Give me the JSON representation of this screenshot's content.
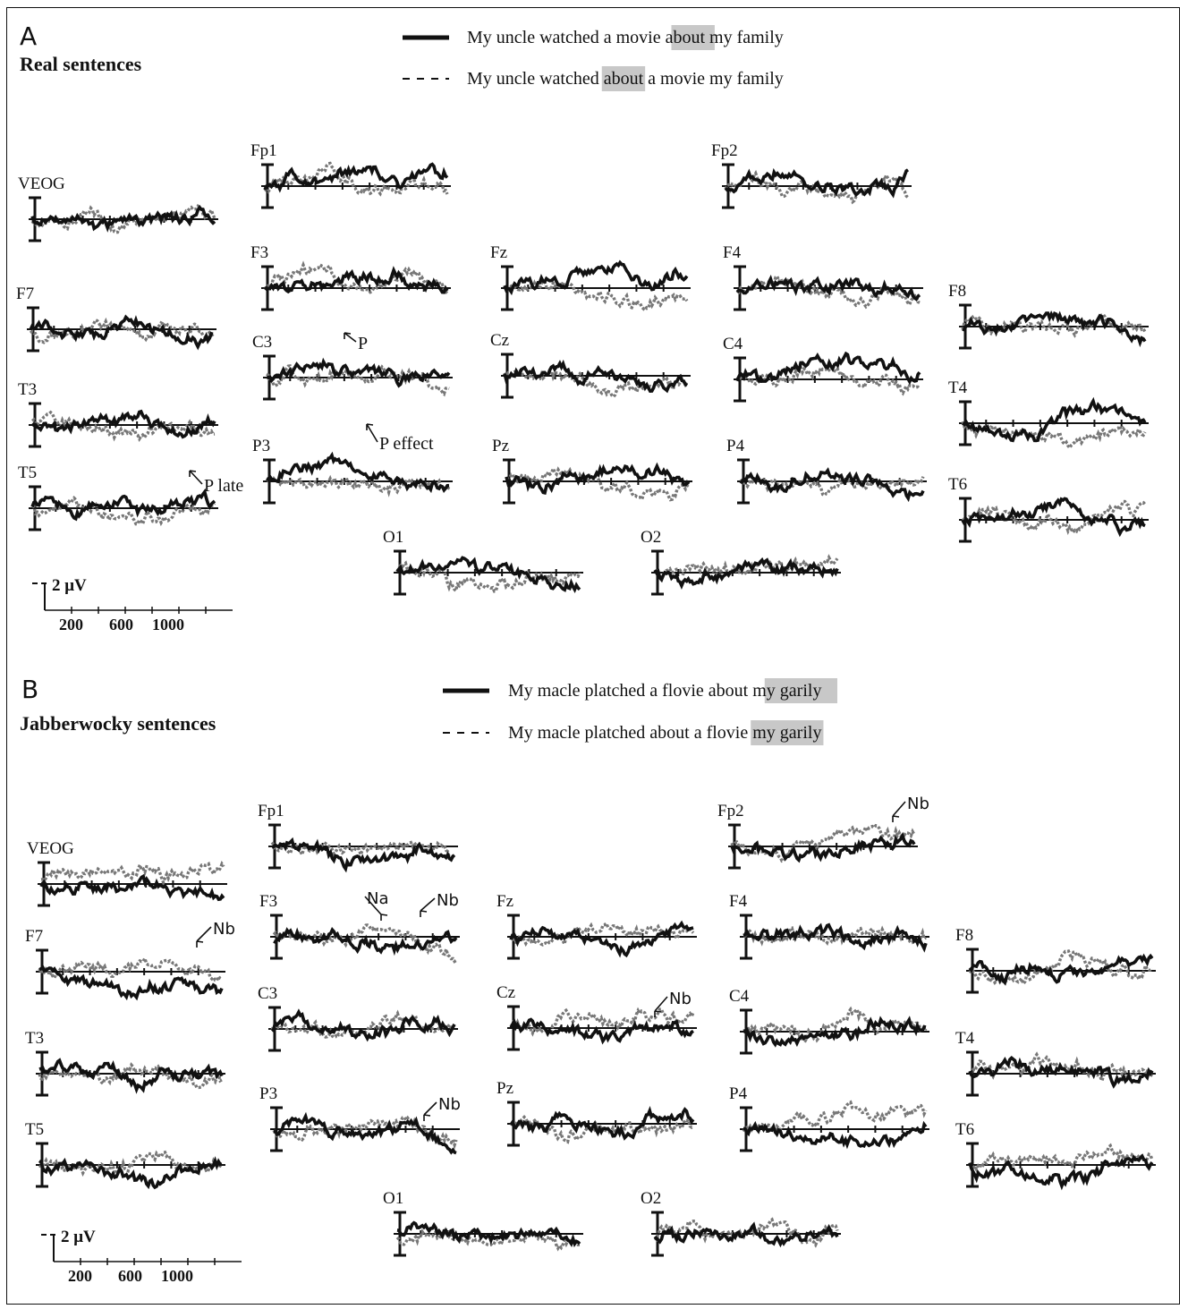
{
  "panels": [
    {
      "id": "A",
      "letter": "A",
      "title": "Real sentences",
      "legend": [
        {
          "style": "solid",
          "parts": [
            "My uncle watched a  movie ",
            "about",
            "  my family"
          ],
          "highlight": 1
        },
        {
          "style": "dashed",
          "parts": [
            "My uncle watched ",
            "about",
            " a movie my family"
          ],
          "highlight": 1
        }
      ],
      "electrodes": [
        "VEOG",
        "Fp1",
        "Fp2",
        "F7",
        "F3",
        "Fz",
        "F4",
        "F8",
        "T3",
        "C3",
        "Cz",
        "C4",
        "T4",
        "T5",
        "P3",
        "Pz",
        "P4",
        "T6",
        "O1",
        "O2"
      ],
      "annotations": [
        "P",
        "P effect",
        "P late"
      ],
      "scale": {
        "amplitude": "2 μV",
        "ticks": [
          "200",
          "600",
          "1000"
        ]
      }
    },
    {
      "id": "B",
      "letter": "B",
      "title": "Jabberwocky sentences",
      "legend": [
        {
          "style": "solid",
          "parts": [
            "My macle platched a flovie  about ",
            "my  garily"
          ],
          "highlight": 1
        },
        {
          "style": "dashed",
          "parts": [
            "My macle platched about a flovie ",
            "my  garily"
          ],
          "highlight": 1
        }
      ],
      "electrodes": [
        "VEOG",
        "Fp1",
        "Fp2",
        "F7",
        "F3",
        "Fz",
        "F4",
        "F8",
        "T3",
        "C3",
        "Cz",
        "C4",
        "T4",
        "T5",
        "P3",
        "Pz",
        "P4",
        "T6",
        "O1",
        "O2"
      ],
      "annotations": [
        "Na",
        "Nb"
      ],
      "scale": {
        "amplitude": "2 μV",
        "ticks": [
          "200",
          "600",
          "1000"
        ]
      }
    }
  ],
  "colors": {
    "ink": "#111111",
    "highlight": "#c8c8c8",
    "dashed_trace": "#777777"
  }
}
